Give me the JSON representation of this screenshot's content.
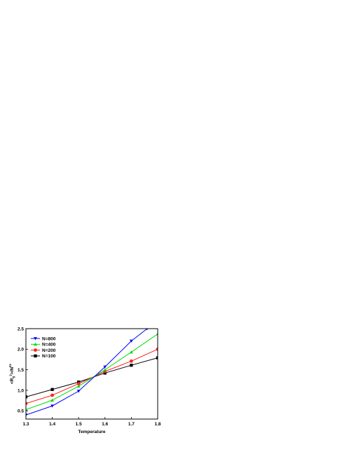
{
  "chart_data": {
    "type": "line",
    "xlabel": "Temperature",
    "ylabel": "<R",
    "ylabel_sub": "g",
    "ylabel_sup1": "2",
    "ylabel_tail": ">/N",
    "ylabel_sup2": "2ν",
    "xlim": [
      1.3,
      1.8
    ],
    "ylim": [
      0.3,
      2.5
    ],
    "x_ticks": [
      "1.3",
      "1.4",
      "1.5",
      "1.6",
      "1.7",
      "1.8"
    ],
    "y_ticks": [
      "0.5",
      "1.0",
      "1.5",
      "2.0",
      "2.5"
    ],
    "x_tick_values": [
      1.3,
      1.4,
      1.5,
      1.6,
      1.7,
      1.8
    ],
    "y_tick_values": [
      0.5,
      1.0,
      1.5,
      2.0,
      2.5
    ],
    "legend_position": "top-left",
    "x": [
      1.3,
      1.4,
      1.5,
      1.6,
      1.7,
      1.8
    ],
    "series": [
      {
        "name": "N=800",
        "color": "#0000ff",
        "marker": "triangle-down",
        "x": [
          1.3,
          1.4,
          1.5,
          1.6,
          1.7,
          1.76
        ],
        "values": [
          0.4,
          0.62,
          0.98,
          1.57,
          2.2,
          2.5
        ]
      },
      {
        "name": "N=400",
        "color": "#00dd00",
        "marker": "triangle-up",
        "x": [
          1.3,
          1.4,
          1.5,
          1.6,
          1.7,
          1.8
        ],
        "values": [
          0.53,
          0.76,
          1.1,
          1.5,
          1.93,
          2.37
        ]
      },
      {
        "name": "N=200",
        "color": "#ff2020",
        "marker": "circle",
        "x": [
          1.3,
          1.4,
          1.5,
          1.6,
          1.7,
          1.8
        ],
        "values": [
          0.68,
          0.88,
          1.16,
          1.46,
          1.71,
          2.0
        ]
      },
      {
        "name": "N=100",
        "color": "#000000",
        "marker": "square",
        "x": [
          1.3,
          1.4,
          1.5,
          1.6,
          1.7,
          1.8
        ],
        "values": [
          0.84,
          1.02,
          1.2,
          1.42,
          1.61,
          1.79
        ]
      }
    ]
  }
}
